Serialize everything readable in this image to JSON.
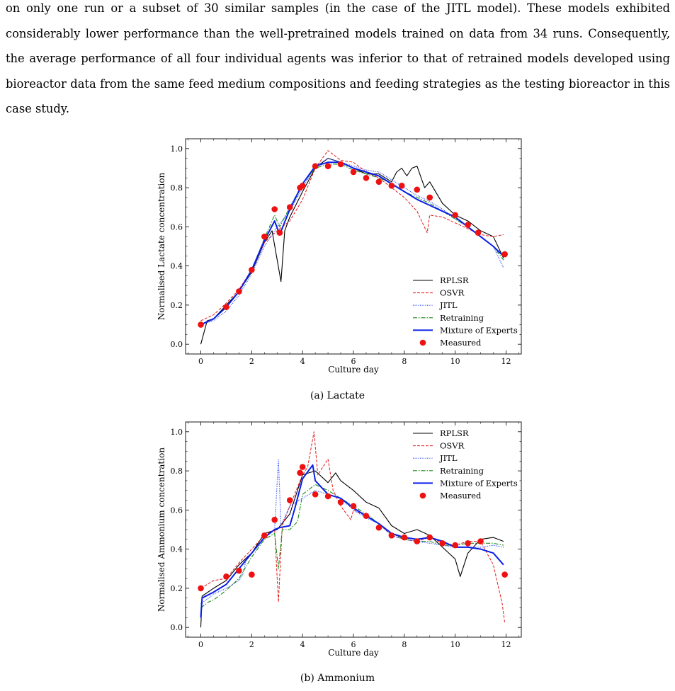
{
  "paragraph": "on only one run or a subset of 30 similar samples (in the case of the JITL model). These models exhibited considerably lower performance than the well-pretrained models trained on data from 34 runs. Consequently, the average performance of all four individual agents was inferior to that of retrained models developed using bioreactor data from the same feed medium compositions and feeding strategies as the testing bioreactor in this case study.",
  "colors": {
    "RPLSR": "#000000",
    "OSVR": "#e41a1c",
    "JITL": "#1f3fff",
    "Retraining": "#1a8a1a",
    "Mixture of Experts": "#0a1fe6",
    "Measured": "#ee1111"
  },
  "chart_data": [
    {
      "type": "line",
      "caption": "(a) Lactate",
      "xlabel": "Culture day",
      "ylabel": "Normalised Lactate concentration",
      "xlim": [
        -0.6,
        12.6
      ],
      "ylim": [
        -0.05,
        1.05
      ],
      "xticks": [
        "0",
        "2",
        "4",
        "6",
        "8",
        "10",
        "12"
      ],
      "yticks": [
        "0.0",
        "0.2",
        "0.4",
        "0.6",
        "0.8",
        "1.0"
      ],
      "legend_position": "lower-right",
      "series": [
        {
          "name": "RPLSR",
          "style": "solid",
          "x": [
            0,
            0.25,
            0.5,
            1,
            1.5,
            2,
            2.5,
            2.8,
            3.15,
            3.3,
            3.5,
            4,
            4.5,
            5,
            5.5,
            6,
            6.5,
            7,
            7.5,
            7.7,
            7.9,
            8.1,
            8.3,
            8.5,
            8.8,
            9,
            9.5,
            10,
            10.5,
            11,
            11.5,
            11.9
          ],
          "y": [
            0.0,
            0.12,
            0.13,
            0.2,
            0.27,
            0.37,
            0.52,
            0.58,
            0.32,
            0.58,
            0.65,
            0.78,
            0.9,
            0.95,
            0.93,
            0.9,
            0.87,
            0.87,
            0.83,
            0.88,
            0.9,
            0.86,
            0.9,
            0.91,
            0.8,
            0.83,
            0.72,
            0.66,
            0.63,
            0.58,
            0.55,
            0.44
          ]
        },
        {
          "name": "OSVR",
          "style": "dashed",
          "x": [
            0,
            0.5,
            1,
            1.5,
            2,
            2.5,
            3,
            3.5,
            4,
            4.5,
            5,
            5.5,
            6,
            6.5,
            7,
            7.5,
            8,
            8.5,
            8.9,
            9,
            9.5,
            10,
            10.5,
            11,
            11.5,
            11.9
          ],
          "y": [
            0.12,
            0.15,
            0.21,
            0.28,
            0.38,
            0.52,
            0.58,
            0.63,
            0.74,
            0.9,
            0.99,
            0.94,
            0.93,
            0.88,
            0.85,
            0.8,
            0.75,
            0.68,
            0.57,
            0.66,
            0.65,
            0.62,
            0.59,
            0.56,
            0.55,
            0.56
          ]
        },
        {
          "name": "JITL",
          "style": "dotted",
          "x": [
            0,
            0.5,
            1,
            1.5,
            2,
            2.5,
            3,
            3.5,
            4,
            4.5,
            5,
            5.5,
            6,
            6.5,
            7,
            7.5,
            8,
            8.5,
            9,
            9.5,
            10,
            10.5,
            11,
            11.5,
            11.9
          ],
          "y": [
            0.1,
            0.12,
            0.17,
            0.25,
            0.36,
            0.5,
            0.6,
            0.68,
            0.8,
            0.91,
            0.95,
            0.93,
            0.91,
            0.89,
            0.88,
            0.84,
            0.8,
            0.76,
            0.73,
            0.69,
            0.64,
            0.6,
            0.55,
            0.5,
            0.39
          ]
        },
        {
          "name": "Retraining",
          "style": "dashdot",
          "x": [
            0,
            0.5,
            1,
            1.5,
            2,
            2.5,
            2.9,
            3.1,
            3.5,
            4,
            4.5,
            5,
            5.5,
            6,
            6.5,
            7,
            7.5,
            8,
            8.5,
            9,
            9.5,
            10,
            10.5,
            11,
            11.5,
            11.9
          ],
          "y": [
            0.1,
            0.13,
            0.19,
            0.27,
            0.38,
            0.54,
            0.66,
            0.6,
            0.7,
            0.82,
            0.9,
            0.92,
            0.92,
            0.89,
            0.87,
            0.85,
            0.82,
            0.78,
            0.75,
            0.72,
            0.68,
            0.64,
            0.6,
            0.55,
            0.5,
            0.43
          ]
        },
        {
          "name": "Mixture of Experts",
          "style": "solid-thick",
          "x": [
            0,
            0.5,
            1,
            1.5,
            2,
            2.5,
            2.9,
            3.1,
            3.5,
            4,
            4.5,
            5,
            5.5,
            6,
            6.5,
            7,
            7.5,
            8,
            8.5,
            9,
            9.5,
            10,
            10.5,
            11,
            11.5,
            11.9
          ],
          "y": [
            0.1,
            0.13,
            0.19,
            0.27,
            0.38,
            0.53,
            0.63,
            0.56,
            0.69,
            0.82,
            0.91,
            0.93,
            0.93,
            0.9,
            0.88,
            0.86,
            0.82,
            0.78,
            0.74,
            0.71,
            0.68,
            0.65,
            0.6,
            0.55,
            0.5,
            0.45
          ]
        },
        {
          "name": "Measured",
          "style": "markers",
          "x": [
            0,
            1,
            1.5,
            2,
            2.5,
            2.9,
            3.1,
            3.5,
            3.9,
            4,
            4.5,
            5,
            5.5,
            6,
            6.5,
            7,
            7.5,
            7.9,
            8.5,
            9,
            10,
            10.5,
            10.9,
            11.95
          ],
          "y": [
            0.1,
            0.19,
            0.27,
            0.38,
            0.55,
            0.69,
            0.57,
            0.7,
            0.8,
            0.81,
            0.91,
            0.91,
            0.92,
            0.88,
            0.85,
            0.83,
            0.81,
            0.81,
            0.79,
            0.75,
            0.66,
            0.61,
            0.57,
            0.46
          ]
        }
      ]
    },
    {
      "type": "line",
      "caption": "(b) Ammonium",
      "xlabel": "Culture day",
      "ylabel": "Normalised Ammonium concentration",
      "xlim": [
        -0.6,
        12.6
      ],
      "ylim": [
        -0.05,
        1.05
      ],
      "xticks": [
        "0",
        "2",
        "4",
        "6",
        "8",
        "10",
        "12"
      ],
      "yticks": [
        "0.0",
        "0.2",
        "0.4",
        "0.6",
        "0.8",
        "1.0"
      ],
      "legend_position": "upper-right",
      "series": [
        {
          "name": "RPLSR",
          "style": "solid",
          "x": [
            0,
            0.05,
            0.5,
            1,
            1.5,
            2,
            2.5,
            3,
            3.5,
            4,
            4.5,
            5,
            5.3,
            5.5,
            6,
            6.5,
            7,
            7.5,
            8,
            8.5,
            9,
            9.5,
            10,
            10.2,
            10.5,
            11,
            11.5,
            11.9
          ],
          "y": [
            0.0,
            0.16,
            0.2,
            0.24,
            0.32,
            0.38,
            0.48,
            0.5,
            0.58,
            0.78,
            0.8,
            0.74,
            0.79,
            0.75,
            0.7,
            0.64,
            0.61,
            0.52,
            0.48,
            0.5,
            0.47,
            0.41,
            0.35,
            0.26,
            0.38,
            0.45,
            0.46,
            0.44
          ]
        },
        {
          "name": "OSVR",
          "style": "dashed",
          "x": [
            0,
            0.5,
            1,
            1.5,
            2,
            2.5,
            2.9,
            3.05,
            3.2,
            3.5,
            4,
            4.2,
            4.45,
            4.6,
            5,
            5.2,
            5.5,
            5.9,
            6,
            6.5,
            7,
            7.5,
            8,
            8.5,
            9,
            9.5,
            10,
            10.5,
            11,
            11.5,
            11.85,
            11.95
          ],
          "y": [
            0.2,
            0.24,
            0.25,
            0.33,
            0.4,
            0.47,
            0.5,
            0.13,
            0.52,
            0.62,
            0.78,
            0.82,
            1.0,
            0.78,
            0.86,
            0.7,
            0.62,
            0.55,
            0.6,
            0.57,
            0.53,
            0.47,
            0.45,
            0.44,
            0.46,
            0.43,
            0.42,
            0.44,
            0.44,
            0.32,
            0.12,
            0.02
          ]
        },
        {
          "name": "JITL",
          "style": "dotted",
          "x": [
            0,
            0.5,
            1,
            1.5,
            1.65,
            1.8,
            2,
            2.5,
            2.9,
            3.05,
            3.15,
            3.5,
            4,
            4.5,
            5,
            5.5,
            6,
            6.5,
            7,
            7.5,
            8,
            8.5,
            9,
            9.5,
            10,
            10.5,
            11,
            11.5,
            11.9
          ],
          "y": [
            0.12,
            0.17,
            0.2,
            0.24,
            0.27,
            0.36,
            0.38,
            0.46,
            0.5,
            0.86,
            0.52,
            0.62,
            0.66,
            0.7,
            0.68,
            0.66,
            0.6,
            0.56,
            0.53,
            0.47,
            0.45,
            0.44,
            0.43,
            0.42,
            0.41,
            0.41,
            0.41,
            0.42,
            0.41
          ]
        },
        {
          "name": "Retraining",
          "style": "dashdot",
          "x": [
            0,
            0.3,
            0.5,
            1,
            1.5,
            2,
            2.5,
            2.9,
            3.05,
            3.2,
            3.5,
            3.8,
            4,
            4.5,
            5,
            5.5,
            6,
            6.5,
            7,
            7.5,
            8,
            8.5,
            9,
            9.5,
            10,
            10.5,
            11,
            11.5,
            11.9
          ],
          "y": [
            0.1,
            0.13,
            0.14,
            0.19,
            0.25,
            0.36,
            0.45,
            0.48,
            0.3,
            0.5,
            0.5,
            0.54,
            0.68,
            0.73,
            0.7,
            0.66,
            0.62,
            0.58,
            0.53,
            0.48,
            0.45,
            0.44,
            0.44,
            0.42,
            0.42,
            0.43,
            0.43,
            0.43,
            0.42
          ]
        },
        {
          "name": "Mixture of Experts",
          "style": "solid-thick",
          "x": [
            0,
            0.05,
            0.5,
            1,
            1.5,
            2,
            2.5,
            2.9,
            3.1,
            3.5,
            3.7,
            4,
            4.4,
            4.5,
            5,
            5.5,
            6,
            6.5,
            7,
            7.5,
            8,
            8.5,
            9,
            9.5,
            10,
            10.5,
            11,
            11.5,
            11.9
          ],
          "y": [
            0.05,
            0.15,
            0.18,
            0.22,
            0.3,
            0.38,
            0.46,
            0.5,
            0.51,
            0.52,
            0.61,
            0.76,
            0.83,
            0.75,
            0.68,
            0.66,
            0.61,
            0.57,
            0.53,
            0.48,
            0.46,
            0.45,
            0.46,
            0.44,
            0.41,
            0.41,
            0.4,
            0.38,
            0.32
          ]
        },
        {
          "name": "Measured",
          "style": "markers",
          "x": [
            0,
            1,
            1.5,
            2,
            2.5,
            2.9,
            3.5,
            3.9,
            4,
            4.5,
            5,
            5.5,
            6,
            6.5,
            7,
            7.5,
            8,
            8.5,
            9,
            9.5,
            10,
            10.5,
            11,
            11.95
          ],
          "y": [
            0.2,
            0.26,
            0.29,
            0.27,
            0.47,
            0.55,
            0.65,
            0.79,
            0.82,
            0.68,
            0.67,
            0.64,
            0.62,
            0.57,
            0.51,
            0.47,
            0.46,
            0.44,
            0.46,
            0.43,
            0.42,
            0.43,
            0.44,
            0.27
          ]
        }
      ]
    }
  ]
}
